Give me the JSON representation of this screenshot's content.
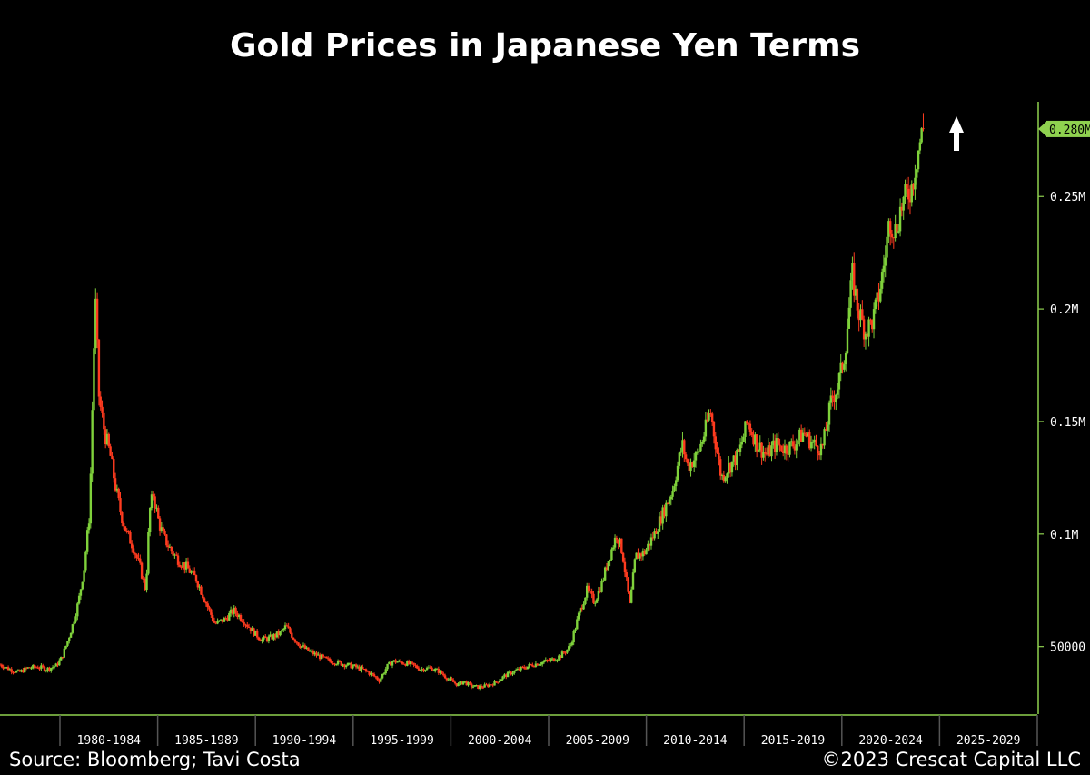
{
  "chart_data": {
    "type": "candlestick",
    "title": "Gold Prices in Japanese Yen Terms",
    "x_tick_labels": [
      "1980-1984",
      "1985-1989",
      "1990-1994",
      "1995-1999",
      "2000-2004",
      "2005-2009",
      "2010-2014",
      "2015-2019",
      "2020-2024",
      "2025-2029"
    ],
    "y_tick_labels": [
      {
        "value": 50000,
        "label": "50000"
      },
      {
        "value": 100000,
        "label": "0.1M"
      },
      {
        "value": 150000,
        "label": "0.15M"
      },
      {
        "value": 200000,
        "label": "0.2M"
      },
      {
        "value": 250000,
        "label": "0.25M"
      }
    ],
    "last_value": 280000,
    "last_value_label": "0.280M",
    "ylim": [
      20000,
      305000
    ],
    "xlim": [
      1975,
      2030.5
    ],
    "series": [
      {
        "values": [
          {
            "x": 1975.0,
            "y": 42000
          },
          {
            "x": 1975.5,
            "y": 40000
          },
          {
            "x": 1976.0,
            "y": 38500
          },
          {
            "x": 1976.5,
            "y": 40500
          },
          {
            "x": 1977.0,
            "y": 41000
          },
          {
            "x": 1977.5,
            "y": 40000
          },
          {
            "x": 1978.0,
            "y": 41500
          },
          {
            "x": 1978.3,
            "y": 45000
          },
          {
            "x": 1978.6,
            "y": 52000
          },
          {
            "x": 1978.9,
            "y": 60000
          },
          {
            "x": 1979.2,
            "y": 70000
          },
          {
            "x": 1979.5,
            "y": 85000
          },
          {
            "x": 1979.8,
            "y": 110000
          },
          {
            "x": 1980.0,
            "y": 175000
          },
          {
            "x": 1980.1,
            "y": 205000
          },
          {
            "x": 1980.3,
            "y": 160000
          },
          {
            "x": 1980.6,
            "y": 145000
          },
          {
            "x": 1980.9,
            "y": 135000
          },
          {
            "x": 1981.2,
            "y": 120000
          },
          {
            "x": 1981.5,
            "y": 108000
          },
          {
            "x": 1981.8,
            "y": 100000
          },
          {
            "x": 1982.1,
            "y": 95000
          },
          {
            "x": 1982.5,
            "y": 85000
          },
          {
            "x": 1982.8,
            "y": 75000
          },
          {
            "x": 1983.0,
            "y": 110000
          },
          {
            "x": 1983.2,
            "y": 118000
          },
          {
            "x": 1983.5,
            "y": 105000
          },
          {
            "x": 1983.8,
            "y": 98000
          },
          {
            "x": 1984.2,
            "y": 92000
          },
          {
            "x": 1984.6,
            "y": 88000
          },
          {
            "x": 1985.0,
            "y": 85000
          },
          {
            "x": 1985.5,
            "y": 80000
          },
          {
            "x": 1986.0,
            "y": 70000
          },
          {
            "x": 1986.5,
            "y": 60000
          },
          {
            "x": 1987.0,
            "y": 62000
          },
          {
            "x": 1987.5,
            "y": 66000
          },
          {
            "x": 1988.0,
            "y": 62000
          },
          {
            "x": 1988.5,
            "y": 57000
          },
          {
            "x": 1989.0,
            "y": 53000
          },
          {
            "x": 1989.5,
            "y": 54000
          },
          {
            "x": 1990.0,
            "y": 56000
          },
          {
            "x": 1990.3,
            "y": 59000
          },
          {
            "x": 1990.7,
            "y": 54000
          },
          {
            "x": 1991.0,
            "y": 51000
          },
          {
            "x": 1991.5,
            "y": 48000
          },
          {
            "x": 1992.0,
            "y": 46000
          },
          {
            "x": 1992.5,
            "y": 44000
          },
          {
            "x": 1993.0,
            "y": 43000
          },
          {
            "x": 1993.5,
            "y": 42000
          },
          {
            "x": 1994.0,
            "y": 41000
          },
          {
            "x": 1994.5,
            "y": 39500
          },
          {
            "x": 1995.0,
            "y": 37000
          },
          {
            "x": 1995.3,
            "y": 35000
          },
          {
            "x": 1995.7,
            "y": 41000
          },
          {
            "x": 1996.0,
            "y": 43500
          },
          {
            "x": 1996.5,
            "y": 43000
          },
          {
            "x": 1997.0,
            "y": 42000
          },
          {
            "x": 1997.5,
            "y": 40000
          },
          {
            "x": 1998.0,
            "y": 40500
          },
          {
            "x": 1998.5,
            "y": 39000
          },
          {
            "x": 1999.0,
            "y": 35500
          },
          {
            "x": 1999.5,
            "y": 33000
          },
          {
            "x": 1999.8,
            "y": 34500
          },
          {
            "x": 2000.2,
            "y": 32500
          },
          {
            "x": 2000.6,
            "y": 32000
          },
          {
            "x": 2001.0,
            "y": 32500
          },
          {
            "x": 2001.5,
            "y": 34000
          },
          {
            "x": 2002.0,
            "y": 37000
          },
          {
            "x": 2002.5,
            "y": 39000
          },
          {
            "x": 2003.0,
            "y": 40500
          },
          {
            "x": 2003.5,
            "y": 42000
          },
          {
            "x": 2004.0,
            "y": 43000
          },
          {
            "x": 2004.5,
            "y": 44000
          },
          {
            "x": 2005.0,
            "y": 46000
          },
          {
            "x": 2005.5,
            "y": 50000
          },
          {
            "x": 2006.0,
            "y": 65000
          },
          {
            "x": 2006.4,
            "y": 75000
          },
          {
            "x": 2006.8,
            "y": 70000
          },
          {
            "x": 2007.2,
            "y": 78000
          },
          {
            "x": 2007.6,
            "y": 90000
          },
          {
            "x": 2008.0,
            "y": 100000
          },
          {
            "x": 2008.3,
            "y": 92000
          },
          {
            "x": 2008.7,
            "y": 68000
          },
          {
            "x": 2009.0,
            "y": 90000
          },
          {
            "x": 2009.5,
            "y": 92000
          },
          {
            "x": 2010.0,
            "y": 100000
          },
          {
            "x": 2010.5,
            "y": 110000
          },
          {
            "x": 2011.0,
            "y": 120000
          },
          {
            "x": 2011.5,
            "y": 140000
          },
          {
            "x": 2011.8,
            "y": 130000
          },
          {
            "x": 2012.3,
            "y": 135000
          },
          {
            "x": 2012.7,
            "y": 145000
          },
          {
            "x": 2013.0,
            "y": 155000
          },
          {
            "x": 2013.3,
            "y": 140000
          },
          {
            "x": 2013.6,
            "y": 125000
          },
          {
            "x": 2014.0,
            "y": 130000
          },
          {
            "x": 2014.5,
            "y": 135000
          },
          {
            "x": 2015.0,
            "y": 150000
          },
          {
            "x": 2015.5,
            "y": 140000
          },
          {
            "x": 2016.0,
            "y": 135000
          },
          {
            "x": 2016.5,
            "y": 140000
          },
          {
            "x": 2017.0,
            "y": 138000
          },
          {
            "x": 2017.5,
            "y": 140000
          },
          {
            "x": 2018.0,
            "y": 145000
          },
          {
            "x": 2018.5,
            "y": 140000
          },
          {
            "x": 2019.0,
            "y": 138000
          },
          {
            "x": 2019.5,
            "y": 160000
          },
          {
            "x": 2019.8,
            "y": 165000
          },
          {
            "x": 2020.2,
            "y": 180000
          },
          {
            "x": 2020.6,
            "y": 215000
          },
          {
            "x": 2020.9,
            "y": 200000
          },
          {
            "x": 2021.3,
            "y": 190000
          },
          {
            "x": 2021.7,
            "y": 195000
          },
          {
            "x": 2022.0,
            "y": 205000
          },
          {
            "x": 2022.3,
            "y": 220000
          },
          {
            "x": 2022.6,
            "y": 240000
          },
          {
            "x": 2022.9,
            "y": 235000
          },
          {
            "x": 2023.2,
            "y": 245000
          },
          {
            "x": 2023.5,
            "y": 250000
          },
          {
            "x": 2023.8,
            "y": 255000
          },
          {
            "x": 2024.1,
            "y": 270000
          },
          {
            "x": 2024.4,
            "y": 280000
          }
        ]
      }
    ]
  },
  "footer": {
    "source": "Source: Bloomberg; Tavi Costa",
    "copyright": "©2023 Crescat Capital LLC"
  },
  "colors": {
    "background": "#000000",
    "up": "#7fd13b",
    "down": "#ff3b1f",
    "axis": "#8fd14f",
    "label_badge": "#8fd14f",
    "text": "#ffffff"
  },
  "annotation": {
    "icon": "up-arrow-icon"
  }
}
